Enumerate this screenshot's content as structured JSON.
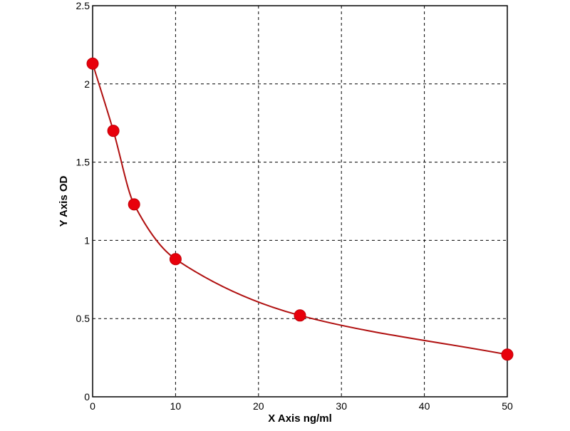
{
  "chart_data": {
    "type": "scatter",
    "xlabel": "X Axis ng/ml",
    "ylabel": "Y Axis OD",
    "xlim": [
      0,
      50
    ],
    "ylim": [
      0,
      2.5
    ],
    "x_ticks": [
      0,
      10,
      20,
      30,
      40,
      50
    ],
    "y_ticks": [
      0,
      0.5,
      1,
      1.5,
      2,
      2.5
    ],
    "grid": true,
    "series": [
      {
        "points": [
          {
            "x": 0,
            "y": 2.13
          },
          {
            "x": 2.5,
            "y": 1.7
          },
          {
            "x": 5,
            "y": 1.23
          },
          {
            "x": 10,
            "y": 0.88
          },
          {
            "x": 25,
            "y": 0.52
          },
          {
            "x": 50,
            "y": 0.27
          }
        ],
        "marker_color": "#e8000b",
        "curve_color": "#b01010"
      }
    ]
  }
}
